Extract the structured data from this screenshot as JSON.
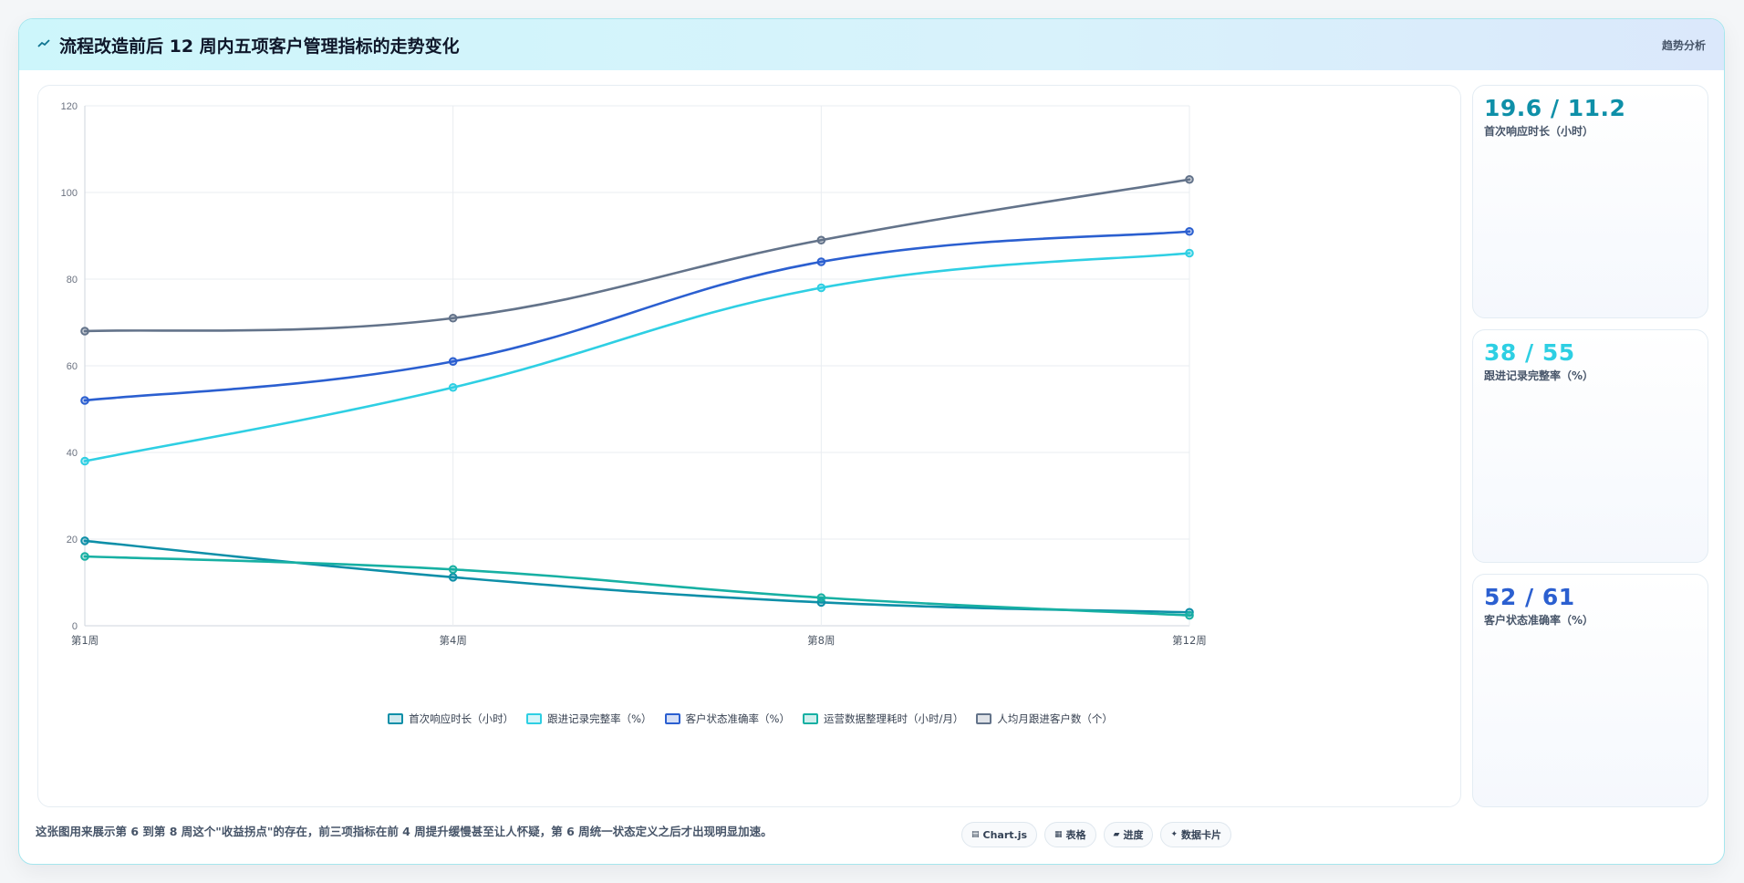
{
  "header": {
    "icon": "trend-line-icon",
    "title": "流程改造前后 12 周内五项客户管理指标的走势变化",
    "tag": "趋势分析"
  },
  "chart_data": {
    "type": "line",
    "categories": [
      "第1周",
      "第4周",
      "第8周",
      "第12周"
    ],
    "ylim": [
      0,
      120
    ],
    "yticks": [
      0,
      20,
      40,
      60,
      80,
      100,
      120
    ],
    "grid": true,
    "legend_position": "bottom",
    "series": [
      {
        "name": "首次响应时长（小时）",
        "color": "#0e8fa8",
        "values": [
          19.6,
          11.2,
          5.4,
          3.1
        ]
      },
      {
        "name": "跟进记录完整率（%）",
        "color": "#2ecfe3",
        "values": [
          38,
          55,
          78,
          86
        ]
      },
      {
        "name": "客户状态准确率（%）",
        "color": "#2b5fd0",
        "values": [
          52,
          61,
          84,
          91
        ]
      },
      {
        "name": "运营数据整理耗时（小时/月）",
        "color": "#17b0a3",
        "values": [
          16,
          13,
          6.5,
          2.4
        ]
      },
      {
        "name": "人均月跟进客户数（个）",
        "color": "#63738a",
        "values": [
          68,
          71,
          89,
          103
        ]
      }
    ]
  },
  "stats": [
    {
      "value": "19.6 / 11.2",
      "label": "首次响应时长（小时）",
      "color": "#0e8fa8"
    },
    {
      "value": "38 / 55",
      "label": "跟进记录完整率（%）",
      "color": "#2ecfe3"
    },
    {
      "value": "52 / 61",
      "label": "客户状态准确率（%）",
      "color": "#2b5fd0"
    }
  ],
  "footer": {
    "note": "这张图用来展示第 6 到第 8 周这个\"收益拐点\"的存在，前三项指标在前 4 周提升缓慢甚至让人怀疑，第 6 周统一状态定义之后才出现明显加速。",
    "chips": [
      {
        "icon": "chart-icon",
        "glyph": "▤",
        "label": "Chart.js"
      },
      {
        "icon": "table-icon",
        "glyph": "▦",
        "label": "表格"
      },
      {
        "icon": "progress-icon",
        "glyph": "▰",
        "label": "进度"
      },
      {
        "icon": "card-icon",
        "glyph": "✦",
        "label": "数据卡片"
      }
    ]
  }
}
